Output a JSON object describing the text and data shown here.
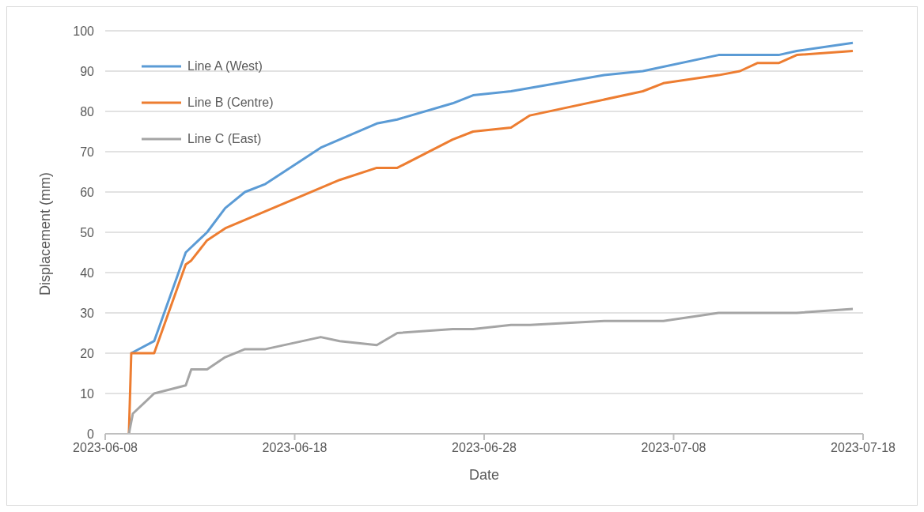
{
  "chart_data": {
    "type": "line",
    "xlabel": "Date",
    "ylabel": "Displacement (mm)",
    "xlim": [
      "2023-06-08",
      "2023-07-18"
    ],
    "xticks": [
      "2023-06-08",
      "2023-06-18",
      "2023-06-28",
      "2023-07-08",
      "2023-07-18"
    ],
    "ylim": [
      0,
      100
    ],
    "yticks": [
      0,
      10,
      20,
      30,
      40,
      50,
      60,
      70,
      80,
      90,
      100
    ],
    "grid": "y",
    "legend": "top left",
    "marker": "none",
    "line_style": "solid",
    "series": [
      {
        "name": "Line A (West)",
        "color": "#5b9bd5",
        "x": [
          "2023-06-09T09:00",
          "2023-06-10T14:00",
          "2023-06-12T06:00",
          "2023-06-13T09:00",
          "2023-06-14T08:00",
          "2023-06-15T09:00",
          "2023-06-16T11:00",
          "2023-06-19T09:00",
          "2023-06-22T08:00",
          "2023-06-23T10:00",
          "2023-06-26T08:00",
          "2023-06-27T10:00",
          "2023-06-29T10:00",
          "2023-07-04T08:00",
          "2023-07-06T09:00",
          "2023-07-10T09:00",
          "2023-07-13T13:00",
          "2023-07-14T12:00",
          "2023-07-17T11:00"
        ],
        "values": [
          20,
          23,
          45,
          50,
          56,
          60,
          62,
          71,
          77,
          78,
          82,
          84,
          85,
          89,
          90,
          94,
          94,
          95,
          97
        ]
      },
      {
        "name": "Line B (Centre)",
        "color": "#ed7d31",
        "x": [
          "2023-06-09T06:00",
          "2023-06-09T09:00",
          "2023-06-10T14:00",
          "2023-06-12T06:00",
          "2023-06-12T13:00",
          "2023-06-13T09:00",
          "2023-06-14T08:00",
          "2023-06-20T09:00",
          "2023-06-22T08:00",
          "2023-06-23T10:00",
          "2023-06-26T08:00",
          "2023-06-27T10:00",
          "2023-06-29T10:00",
          "2023-06-30T10:00",
          "2023-07-06T09:00",
          "2023-07-07T11:00",
          "2023-07-10T09:00",
          "2023-07-11T12:00",
          "2023-07-12T10:00",
          "2023-07-13T13:00",
          "2023-07-14T12:00",
          "2023-07-17T11:00"
        ],
        "values": [
          0,
          20,
          20,
          42,
          43,
          48,
          51,
          63,
          66,
          66,
          73,
          75,
          76,
          79,
          85,
          87,
          89,
          90,
          92,
          92,
          94,
          95
        ]
      },
      {
        "name": "Line C (East)",
        "color": "#a5a5a5",
        "x": [
          "2023-06-09T06:00",
          "2023-06-09T11:00",
          "2023-06-10T14:00",
          "2023-06-12T06:00",
          "2023-06-12T13:00",
          "2023-06-13T09:00",
          "2023-06-14T08:00",
          "2023-06-15T09:00",
          "2023-06-16T11:00",
          "2023-06-19T09:00",
          "2023-06-20T09:00",
          "2023-06-22T08:00",
          "2023-06-23T10:00",
          "2023-06-26T08:00",
          "2023-06-27T10:00",
          "2023-06-29T10:00",
          "2023-06-30T10:00",
          "2023-07-04T08:00",
          "2023-07-07T11:00",
          "2023-07-10T09:00",
          "2023-07-14T12:00",
          "2023-07-17T11:00"
        ],
        "values": [
          0,
          5,
          10,
          12,
          16,
          16,
          19,
          21,
          21,
          24,
          23,
          22,
          25,
          26,
          26,
          27,
          27,
          28,
          28,
          30,
          30,
          31
        ]
      }
    ]
  }
}
